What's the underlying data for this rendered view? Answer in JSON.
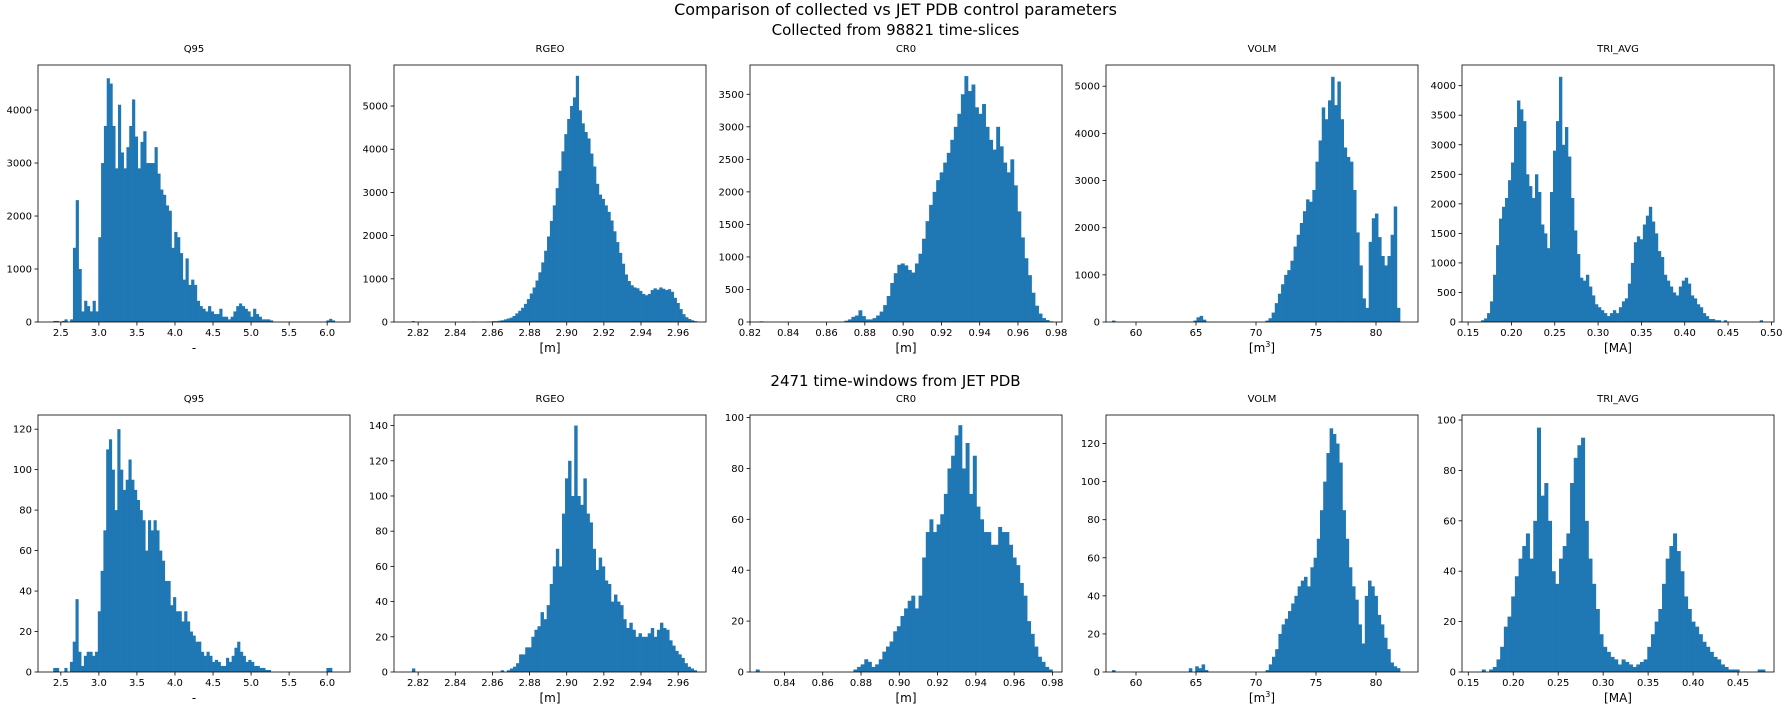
{
  "figure": {
    "title": "Comparison of collected vs JET PDB control parameters",
    "bar_color": "#1f77b4"
  },
  "rows": [
    {
      "title": "Collected from 98821 time-slices"
    },
    {
      "title": "2471 time-windows from JET PDB"
    }
  ],
  "chart_data": [
    {
      "type": "bar",
      "title": "Q95",
      "xlabel": "-",
      "ylabel": "",
      "xlim": [
        2.2,
        6.3
      ],
      "ylim": [
        0,
        4850
      ],
      "xticks": [
        2.5,
        3.0,
        3.5,
        4.0,
        4.5,
        5.0,
        5.5,
        6.0
      ],
      "xtick_labels": [
        "2.5",
        "3.0",
        "3.5",
        "4.0",
        "4.5",
        "5.0",
        "5.5",
        "6.0"
      ],
      "yticks": [
        0,
        1000,
        2000,
        3000,
        4000
      ],
      "ytick_labels": [
        "0",
        "1000",
        "2000",
        "3000",
        "4000"
      ],
      "bin_range": [
        2.4,
        6.1
      ],
      "values": [
        20,
        20,
        0,
        20,
        50,
        0,
        50,
        1400,
        2300,
        1000,
        200,
        400,
        300,
        200,
        400,
        200,
        1600,
        3000,
        3700,
        4600,
        4500,
        3700,
        2900,
        4100,
        3200,
        2900,
        3300,
        3700,
        4200,
        3500,
        2900,
        3400,
        3600,
        3000,
        3000,
        3000,
        3300,
        2800,
        2500,
        2400,
        2200,
        2100,
        1400,
        1700,
        1600,
        1300,
        800,
        1200,
        700,
        800,
        700,
        400,
        300,
        250,
        200,
        300,
        200,
        150,
        150,
        250,
        100,
        100,
        50,
        100,
        200,
        300,
        350,
        300,
        250,
        200,
        100,
        250,
        150,
        100,
        50,
        50,
        50,
        30,
        0,
        0,
        0,
        0,
        0,
        0,
        0,
        0,
        0,
        0,
        0,
        0,
        0,
        0,
        0,
        0,
        0,
        0,
        0,
        30,
        60,
        30
      ]
    },
    {
      "type": "bar",
      "title": "RGEO",
      "xlabel": "[m]",
      "ylabel": "",
      "xlim": [
        2.807,
        2.975
      ],
      "ylim": [
        0,
        5950
      ],
      "xticks": [
        2.82,
        2.84,
        2.86,
        2.88,
        2.9,
        2.92,
        2.94,
        2.96
      ],
      "xtick_labels": [
        "2.82",
        "2.84",
        "2.86",
        "2.88",
        "2.90",
        "2.92",
        "2.94",
        "2.96"
      ],
      "yticks": [
        0,
        1000,
        2000,
        3000,
        4000,
        5000
      ],
      "ytick_labels": [
        "0",
        "1000",
        "2000",
        "3000",
        "4000",
        "5000"
      ],
      "bin_range": [
        2.815,
        2.97
      ],
      "values": [
        0,
        20,
        0,
        0,
        0,
        0,
        0,
        0,
        0,
        0,
        0,
        0,
        0,
        0,
        0,
        0,
        0,
        0,
        0,
        0,
        0,
        0,
        10,
        0,
        0,
        0,
        0,
        10,
        10,
        20,
        20,
        30,
        40,
        60,
        80,
        100,
        140,
        200,
        260,
        330,
        420,
        530,
        660,
        800,
        960,
        1150,
        1380,
        1650,
        1980,
        2340,
        2700,
        3100,
        3500,
        3950,
        4350,
        4700,
        5000,
        5200,
        5700,
        4900,
        4600,
        4400,
        4250,
        3900,
        3600,
        3200,
        2950,
        2850,
        2700,
        2550,
        2350,
        2100,
        1850,
        1600,
        1350,
        1100,
        950,
        850,
        800,
        780,
        720,
        650,
        620,
        650,
        740,
        780,
        750,
        800,
        770,
        740,
        760,
        700,
        560,
        440,
        300,
        180,
        110,
        70,
        40,
        20
      ]
    },
    {
      "type": "bar",
      "title": "CR0",
      "xlabel": "[m]",
      "ylabel": "",
      "xlim": [
        0.82,
        0.983
      ],
      "ylim": [
        0,
        3950
      ],
      "xticks": [
        0.82,
        0.84,
        0.86,
        0.88,
        0.9,
        0.92,
        0.94,
        0.96,
        0.98
      ],
      "xtick_labels": [
        "0.82",
        "0.84",
        "0.86",
        "0.88",
        "0.90",
        "0.92",
        "0.94",
        "0.96",
        "0.98"
      ],
      "yticks": [
        0,
        500,
        1000,
        1500,
        2000,
        2500,
        3000,
        3500
      ],
      "ytick_labels": [
        "0",
        "500",
        "1000",
        "1500",
        "2000",
        "2500",
        "3000",
        "3500"
      ],
      "bin_range": [
        0.825,
        0.98
      ],
      "values": [
        10,
        0,
        0,
        0,
        0,
        0,
        0,
        0,
        0,
        0,
        0,
        0,
        0,
        0,
        0,
        0,
        0,
        0,
        0,
        0,
        0,
        0,
        0,
        0,
        20,
        40,
        80,
        100,
        180,
        90,
        40,
        40,
        60,
        100,
        160,
        260,
        400,
        600,
        750,
        880,
        900,
        870,
        800,
        760,
        900,
        1050,
        1280,
        1550,
        1800,
        2000,
        2180,
        2300,
        2450,
        2600,
        2800,
        3000,
        3200,
        3500,
        3780,
        3550,
        3650,
        3300,
        3200,
        3350,
        3000,
        2800,
        2650,
        3000,
        2700,
        2450,
        2300,
        2500,
        2100,
        1700,
        1300,
        980,
        720,
        450,
        250,
        130,
        60,
        30,
        10,
        0
      ]
    },
    {
      "type": "bar",
      "title": "VOLM",
      "xlabel": "[m$^3$]",
      "ylabel": "",
      "xlim": [
        57.5,
        83.5
      ],
      "ylim": [
        0,
        5450
      ],
      "xticks": [
        60,
        65,
        70,
        75,
        80
      ],
      "xtick_labels": [
        "60",
        "65",
        "70",
        "75",
        "80"
      ],
      "yticks": [
        0,
        1000,
        2000,
        3000,
        4000,
        5000
      ],
      "ytick_labels": [
        "0",
        "1000",
        "2000",
        "3000",
        "4000",
        "5000"
      ],
      "bin_range": [
        58.0,
        82.0
      ],
      "values": [
        30,
        0,
        0,
        0,
        0,
        0,
        0,
        0,
        0,
        0,
        0,
        0,
        0,
        0,
        0,
        0,
        0,
        0,
        0,
        0,
        0,
        0,
        0,
        0,
        0,
        0,
        30,
        100,
        130,
        50,
        0,
        0,
        0,
        0,
        0,
        0,
        0,
        0,
        0,
        0,
        0,
        0,
        0,
        0,
        0,
        0,
        0,
        0,
        0,
        30,
        80,
        200,
        400,
        600,
        800,
        1000,
        1100,
        1300,
        1600,
        1850,
        2100,
        2350,
        2600,
        2550,
        2800,
        3400,
        3850,
        4550,
        4300,
        4700,
        5200,
        4600,
        5100,
        4300,
        3700,
        3500,
        3400,
        2800,
        1900,
        1200,
        500,
        300,
        1700,
        2200,
        2300,
        1800,
        1400,
        1200,
        1400,
        1850,
        2450,
        300
      ]
    },
    {
      "type": "bar",
      "title": "TRI_AVG",
      "xlabel": "[MA]",
      "ylabel": "",
      "xlim": [
        0.143,
        0.503
      ],
      "ylim": [
        0,
        4350
      ],
      "xticks": [
        0.15,
        0.2,
        0.25,
        0.3,
        0.35,
        0.4,
        0.45,
        0.5
      ],
      "xtick_labels": [
        "0.15",
        "0.20",
        "0.25",
        "0.30",
        "0.35",
        "0.40",
        "0.45",
        "0.50"
      ],
      "yticks": [
        0,
        500,
        1000,
        1500,
        2000,
        2500,
        3000,
        3500,
        4000
      ],
      "ytick_labels": [
        "0",
        "500",
        "1000",
        "1500",
        "2000",
        "2500",
        "3000",
        "3500",
        "4000"
      ],
      "bin_range": [
        0.165,
        0.49
      ],
      "values": [
        30,
        60,
        150,
        350,
        800,
        1300,
        1750,
        1950,
        2100,
        2400,
        2700,
        3300,
        3750,
        3600,
        3400,
        2500,
        2300,
        2100,
        2500,
        2200,
        1650,
        1500,
        1250,
        2200,
        2900,
        3400,
        4150,
        3000,
        3300,
        2800,
        2100,
        1550,
        1150,
        750,
        700,
        800,
        600,
        450,
        300,
        250,
        200,
        150,
        100,
        150,
        200,
        150,
        250,
        350,
        400,
        650,
        1000,
        1350,
        1450,
        1400,
        1650,
        1800,
        1950,
        1700,
        1500,
        1200,
        1100,
        800,
        700,
        600,
        500,
        450,
        600,
        700,
        750,
        650,
        450,
        400,
        300,
        250,
        150,
        100,
        50,
        50,
        30,
        30,
        0,
        30,
        0,
        0,
        0,
        0,
        0,
        0,
        0,
        0,
        0,
        0,
        0,
        30
      ]
    },
    {
      "type": "bar",
      "title": "Q95",
      "xlabel": "-",
      "ylabel": "",
      "xlim": [
        2.2,
        6.3
      ],
      "ylim": [
        0,
        127
      ],
      "xticks": [
        2.5,
        3.0,
        3.5,
        4.0,
        4.5,
        5.0,
        5.5,
        6.0
      ],
      "xtick_labels": [
        "2.5",
        "3.0",
        "3.5",
        "4.0",
        "4.5",
        "5.0",
        "5.5",
        "6.0"
      ],
      "yticks": [
        0,
        20,
        40,
        60,
        80,
        100,
        120
      ],
      "ytick_labels": [
        "0",
        "20",
        "40",
        "60",
        "80",
        "100",
        "120"
      ],
      "bin_range": [
        2.4,
        6.1
      ],
      "values": [
        2,
        2,
        0,
        0,
        2,
        0,
        5,
        15,
        36,
        10,
        3,
        8,
        10,
        10,
        8,
        10,
        30,
        50,
        70,
        110,
        115,
        100,
        80,
        120,
        100,
        90,
        95,
        105,
        95,
        90,
        85,
        80,
        75,
        60,
        75,
        70,
        75,
        70,
        60,
        55,
        45,
        45,
        33,
        37,
        30,
        30,
        25,
        30,
        25,
        20,
        18,
        15,
        15,
        10,
        8,
        10,
        8,
        5,
        6,
        5,
        3,
        3,
        7,
        5,
        8,
        12,
        15,
        10,
        8,
        5,
        6,
        5,
        3,
        3,
        2,
        2,
        1,
        1,
        0,
        0,
        0,
        0,
        0,
        0,
        0,
        0,
        0,
        0,
        0,
        0,
        0,
        0,
        0,
        0,
        0,
        0,
        0,
        0,
        2,
        2,
        0
      ]
    },
    {
      "type": "bar",
      "title": "RGEO",
      "xlabel": "[m]",
      "ylabel": "",
      "xlim": [
        2.807,
        2.975
      ],
      "ylim": [
        0,
        146
      ],
      "xticks": [
        2.82,
        2.84,
        2.86,
        2.88,
        2.9,
        2.92,
        2.94,
        2.96
      ],
      "xtick_labels": [
        "2.82",
        "2.84",
        "2.86",
        "2.88",
        "2.90",
        "2.92",
        "2.94",
        "2.96"
      ],
      "yticks": [
        0,
        20,
        40,
        60,
        80,
        100,
        120,
        140
      ],
      "ytick_labels": [
        "0",
        "20",
        "40",
        "60",
        "80",
        "100",
        "120",
        "140"
      ],
      "bin_range": [
        2.815,
        2.97
      ],
      "values": [
        0,
        2,
        0,
        0,
        0,
        0,
        0,
        0,
        0,
        0,
        0,
        0,
        0,
        0,
        0,
        0,
        0,
        0,
        0,
        0,
        0,
        0,
        0,
        0,
        0,
        0,
        0,
        0,
        0,
        0,
        1,
        0,
        1,
        2,
        3,
        5,
        10,
        10,
        14,
        14,
        20,
        24,
        26,
        34,
        30,
        38,
        50,
        60,
        70,
        60,
        90,
        110,
        120,
        100,
        140,
        100,
        95,
        110,
        90,
        85,
        70,
        58,
        65,
        60,
        52,
        50,
        40,
        44,
        40,
        38,
        30,
        25,
        28,
        24,
        20,
        22,
        20,
        20,
        22,
        25,
        20,
        24,
        28,
        25,
        24,
        18,
        15,
        12,
        10,
        8,
        5,
        3,
        2,
        1
      ]
    },
    {
      "type": "bar",
      "title": "CR0",
      "xlabel": "[m]",
      "ylabel": "",
      "xlim": [
        0.822,
        0.985
      ],
      "ylim": [
        0,
        101
      ],
      "xticks": [
        0.84,
        0.86,
        0.88,
        0.9,
        0.92,
        0.94,
        0.96,
        0.98
      ],
      "xtick_labels": [
        "0.84",
        "0.86",
        "0.88",
        "0.90",
        "0.92",
        "0.94",
        "0.96",
        "0.98"
      ],
      "yticks": [
        0,
        20,
        40,
        60,
        80,
        100
      ],
      "ytick_labels": [
        "0",
        "20",
        "40",
        "60",
        "80",
        "100"
      ],
      "bin_range": [
        0.825,
        0.98
      ],
      "values": [
        1,
        0,
        0,
        0,
        0,
        0,
        0,
        0,
        0,
        0,
        0,
        0,
        0,
        0,
        0,
        0,
        0,
        0,
        0,
        0,
        0,
        0,
        0,
        0,
        0,
        0,
        0,
        1,
        2,
        3,
        5,
        4,
        2,
        3,
        5,
        8,
        10,
        12,
        16,
        18,
        22,
        25,
        28,
        30,
        25,
        30,
        45,
        55,
        60,
        55,
        58,
        62,
        70,
        80,
        85,
        93,
        97,
        80,
        90,
        70,
        85,
        65,
        60,
        55,
        55,
        50,
        50,
        57,
        55,
        55,
        50,
        45,
        42,
        35,
        30,
        20,
        15,
        10,
        6,
        4,
        2,
        1
      ]
    },
    {
      "type": "bar",
      "title": "VOLM",
      "xlabel": "[m$^3$]",
      "ylabel": "",
      "xlim": [
        57.5,
        83.5
      ],
      "ylim": [
        0,
        135
      ],
      "xticks": [
        60,
        65,
        70,
        75,
        80
      ],
      "xtick_labels": [
        "60",
        "65",
        "70",
        "75",
        "80"
      ],
      "yticks": [
        0,
        20,
        40,
        60,
        80,
        100,
        120
      ],
      "ytick_labels": [
        "0",
        "20",
        "40",
        "60",
        "80",
        "100",
        "120"
      ],
      "bin_range": [
        58.0,
        82.0
      ],
      "values": [
        1,
        0,
        0,
        0,
        0,
        0,
        0,
        0,
        0,
        0,
        0,
        0,
        0,
        0,
        0,
        0,
        0,
        0,
        0,
        0,
        0,
        0,
        0,
        0,
        2,
        0,
        3,
        2,
        4,
        1,
        0,
        0,
        0,
        0,
        0,
        0,
        0,
        0,
        0,
        0,
        0,
        0,
        0,
        0,
        0,
        0,
        0,
        0,
        1,
        4,
        8,
        12,
        20,
        25,
        28,
        32,
        36,
        40,
        45,
        48,
        50,
        45,
        55,
        60,
        70,
        85,
        100,
        115,
        128,
        125,
        120,
        110,
        85,
        70,
        55,
        45,
        38,
        25,
        15,
        40,
        48,
        45,
        40,
        30,
        25,
        18,
        12,
        5,
        3,
        2
      ]
    },
    {
      "type": "bar",
      "title": "TRI_AVG",
      "xlabel": "[MA]",
      "ylabel": "",
      "xlim": [
        0.143,
        0.49
      ],
      "ylim": [
        0,
        102
      ],
      "xticks": [
        0.15,
        0.2,
        0.25,
        0.3,
        0.35,
        0.4,
        0.45
      ],
      "xtick_labels": [
        "0.15",
        "0.20",
        "0.25",
        "0.30",
        "0.35",
        "0.40",
        "0.45"
      ],
      "yticks": [
        0,
        20,
        40,
        60,
        80,
        100
      ],
      "ytick_labels": [
        "0",
        "20",
        "40",
        "60",
        "80",
        "100"
      ],
      "bin_range": [
        0.165,
        0.48
      ],
      "values": [
        1,
        0,
        1,
        2,
        5,
        10,
        18,
        22,
        30,
        38,
        45,
        50,
        55,
        45,
        60,
        97,
        70,
        75,
        60,
        40,
        35,
        45,
        50,
        55,
        75,
        85,
        90,
        93,
        60,
        45,
        35,
        25,
        15,
        10,
        8,
        6,
        5,
        3,
        5,
        4,
        3,
        2,
        3,
        4,
        5,
        10,
        15,
        20,
        25,
        35,
        45,
        50,
        55,
        48,
        40,
        30,
        25,
        20,
        18,
        15,
        12,
        10,
        8,
        6,
        5,
        3,
        2,
        1,
        1,
        1,
        0,
        0,
        0,
        0,
        0,
        1,
        1
      ]
    }
  ]
}
